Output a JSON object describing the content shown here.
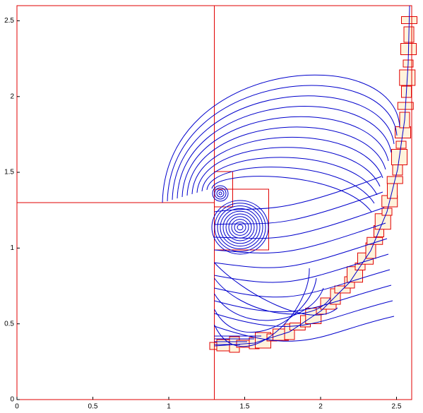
{
  "chart_data": {
    "type": "contour",
    "xlim": [
      0,
      2.6
    ],
    "ylim": [
      0,
      2.6
    ],
    "xticks": [
      0,
      0.5,
      1,
      1.5,
      2,
      2.5
    ],
    "yticks": [
      0,
      0.5,
      1,
      1.5,
      2,
      2.5
    ]
  }
}
